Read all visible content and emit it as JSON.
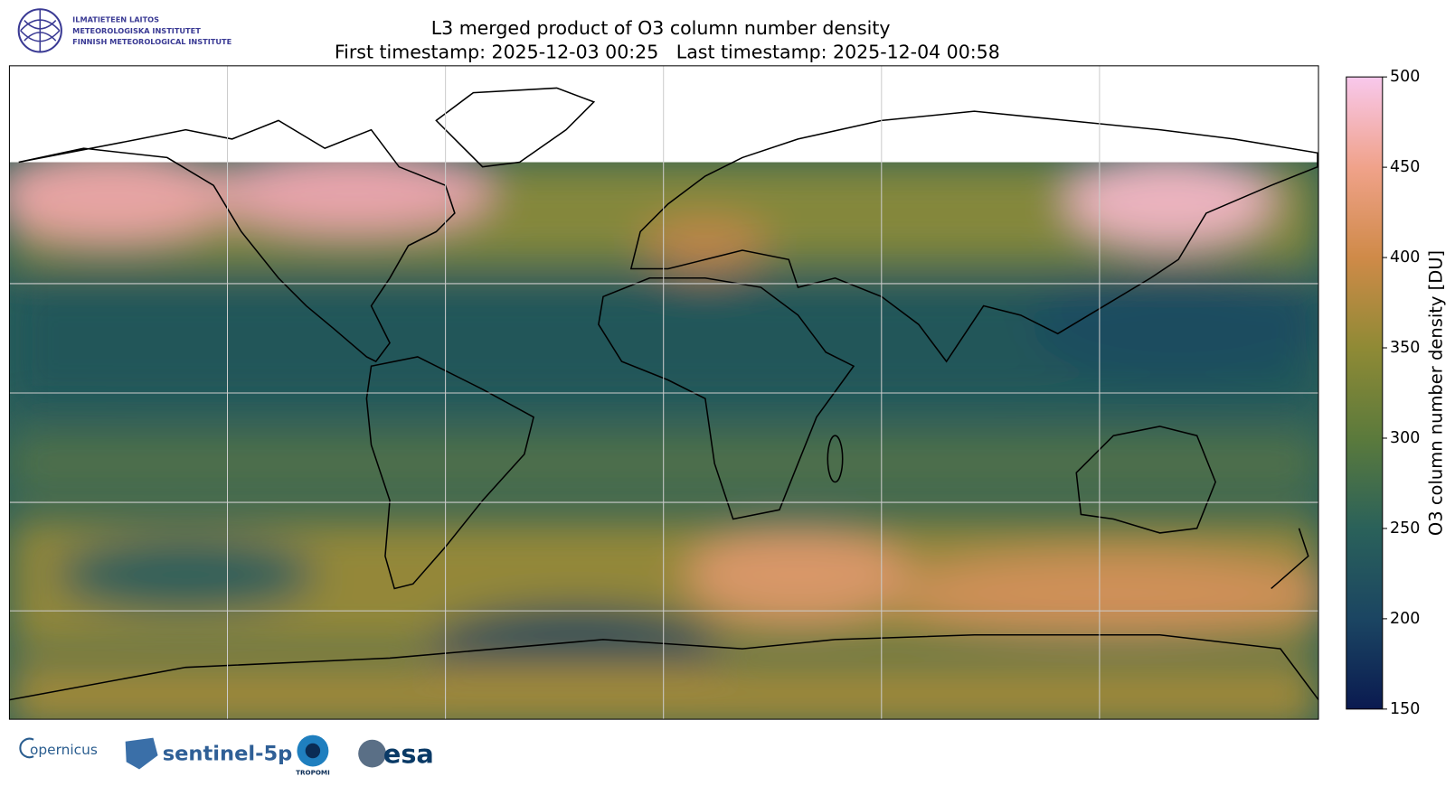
{
  "header": {
    "logo_lines": [
      "ILMATIETEEN LAITOS",
      "METEOROLOGISKA INSTITUTET",
      "FINNISH METEOROLOGICAL INSTITUTE"
    ],
    "title": "L3 merged product of O3 column number density",
    "subtitle": "First timestamp: 2025-12-03 00:25   Last timestamp: 2025-12-04 00:58"
  },
  "colorbar": {
    "label": "O3 column number density [DU]",
    "lim": [
      150,
      500
    ],
    "ticks": [
      150,
      200,
      250,
      300,
      350,
      400,
      450,
      500
    ],
    "colors": [
      "#0a1a50",
      "#1b4562",
      "#2a615a",
      "#5b7a3c",
      "#8f8a35",
      "#cf8a48",
      "#f0a28a",
      "#f8c8ec"
    ]
  },
  "footer": {
    "logos": [
      "opernicus",
      "sentinel-5p",
      "TROPOMI",
      "esa"
    ]
  }
}
